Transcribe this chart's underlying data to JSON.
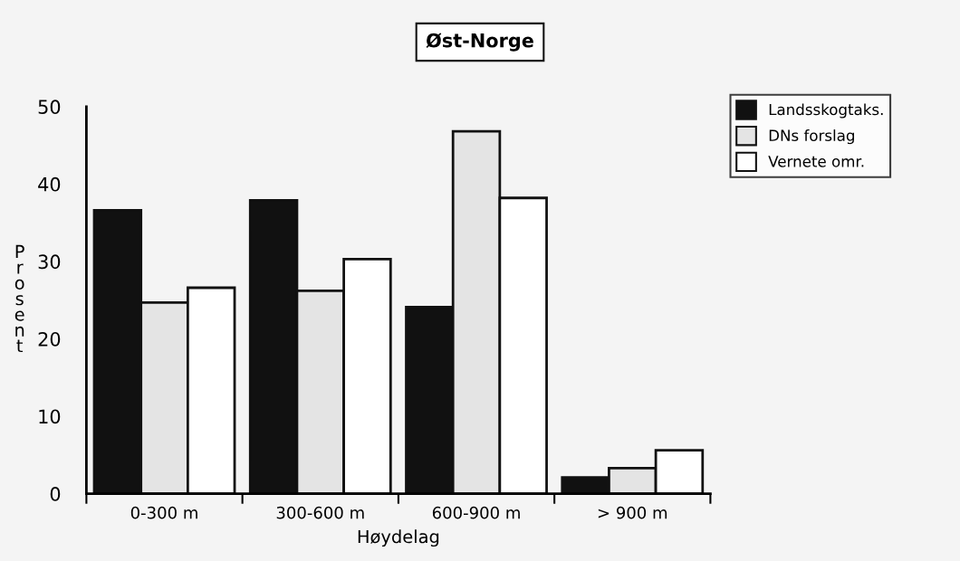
{
  "chart_data": {
    "type": "bar",
    "title": "Øst-Norge",
    "xlabel": "Høydelag",
    "ylabel": "Prosent",
    "categories": [
      "0-300 m",
      "300-600 m",
      "600-900 m",
      "> 900 m"
    ],
    "series": [
      {
        "name": "Landsskogtaks.",
        "color": "#111111",
        "values": [
          36.6,
          37.9,
          24.1,
          2.1
        ]
      },
      {
        "name": "DNs forslag",
        "color": "#e4e4e4",
        "values": [
          24.7,
          26.2,
          46.8,
          3.3
        ]
      },
      {
        "name": "Vernete omr.",
        "color": "#ffffff",
        "values": [
          26.6,
          30.3,
          38.2,
          5.6
        ]
      }
    ],
    "ylim": [
      0,
      50
    ],
    "yticks": [
      0,
      10,
      20,
      30,
      40,
      50
    ],
    "grid": false,
    "legend": "top right"
  }
}
